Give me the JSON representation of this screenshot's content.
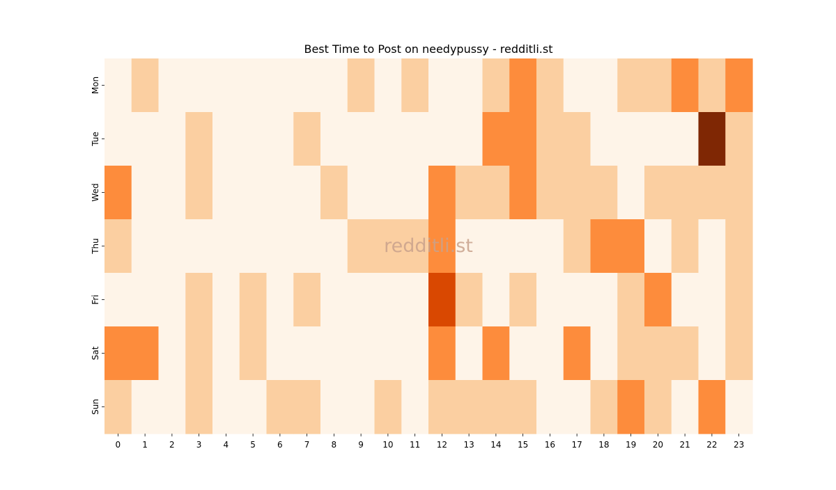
{
  "chart_data": {
    "type": "heatmap",
    "title": "Best Time to Post on needypussy - redditli.st",
    "watermark": "redditli.st",
    "xlabel": "",
    "ylabel": "",
    "x_categories": [
      "0",
      "1",
      "2",
      "3",
      "4",
      "5",
      "6",
      "7",
      "8",
      "9",
      "10",
      "11",
      "12",
      "13",
      "14",
      "15",
      "16",
      "17",
      "18",
      "19",
      "20",
      "21",
      "22",
      "23"
    ],
    "y_categories": [
      "Mon",
      "Tue",
      "Wed",
      "Thu",
      "Fri",
      "Sat",
      "Sun"
    ],
    "grid": false,
    "legend": "none",
    "colormap": {
      "name": "Oranges",
      "levels": [
        0,
        1,
        2,
        3,
        4
      ],
      "colors": [
        "#fef4e8",
        "#fbcfa1",
        "#fd8c3c",
        "#d94801",
        "#7f2704"
      ]
    },
    "values": [
      [
        0,
        1,
        0,
        0,
        0,
        0,
        0,
        0,
        0,
        1,
        0,
        1,
        0,
        0,
        1,
        2,
        1,
        0,
        0,
        1,
        1,
        2,
        1,
        2
      ],
      [
        0,
        0,
        0,
        1,
        0,
        0,
        0,
        1,
        0,
        0,
        0,
        0,
        0,
        0,
        2,
        2,
        1,
        1,
        0,
        0,
        0,
        0,
        4,
        1
      ],
      [
        2,
        0,
        0,
        1,
        0,
        0,
        0,
        0,
        1,
        0,
        0,
        0,
        2,
        1,
        1,
        2,
        1,
        1,
        1,
        0,
        1,
        1,
        1,
        1
      ],
      [
        1,
        0,
        0,
        0,
        0,
        0,
        0,
        0,
        0,
        1,
        1,
        1,
        2,
        0,
        0,
        0,
        0,
        1,
        2,
        2,
        0,
        1,
        0,
        1
      ],
      [
        0,
        0,
        0,
        1,
        0,
        1,
        0,
        1,
        0,
        0,
        0,
        0,
        3,
        1,
        0,
        1,
        0,
        0,
        0,
        1,
        2,
        0,
        0,
        1
      ],
      [
        2,
        2,
        0,
        1,
        0,
        1,
        0,
        0,
        0,
        0,
        0,
        0,
        2,
        0,
        2,
        0,
        0,
        2,
        0,
        1,
        1,
        1,
        0,
        1
      ],
      [
        1,
        0,
        0,
        1,
        0,
        0,
        1,
        1,
        0,
        0,
        1,
        0,
        1,
        1,
        1,
        1,
        0,
        0,
        1,
        2,
        1,
        0,
        2,
        0
      ]
    ]
  }
}
